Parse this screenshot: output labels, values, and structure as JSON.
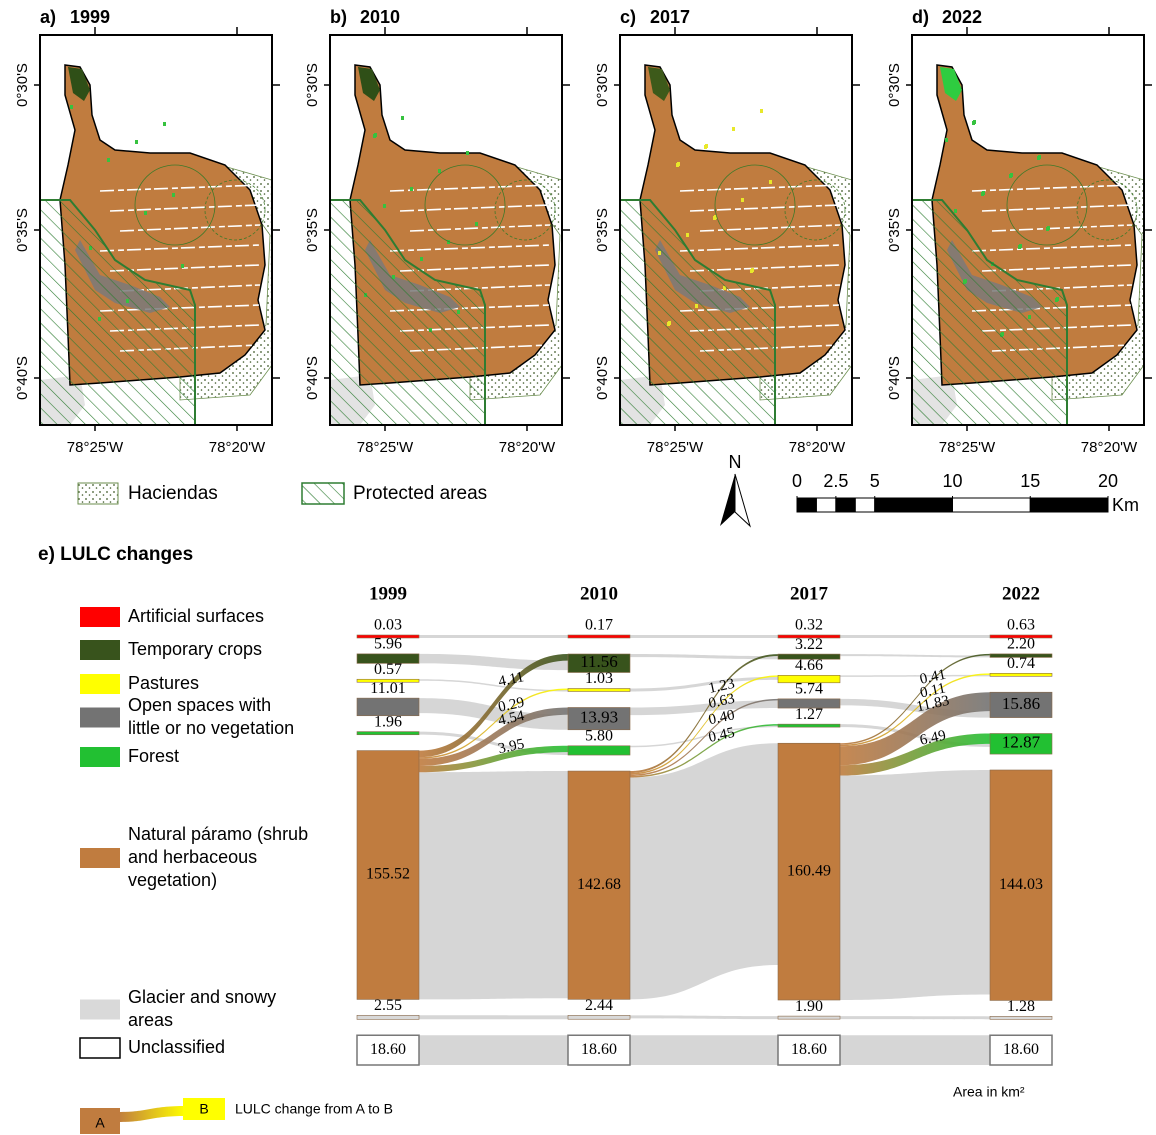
{
  "maps": [
    {
      "label": "a)",
      "year": "1999"
    },
    {
      "label": "b)",
      "year": "2010"
    },
    {
      "label": "c)",
      "year": "2017"
    },
    {
      "label": "d)",
      "year": "2022"
    }
  ],
  "map_axes": {
    "lat_labels": [
      "0°30'S",
      "0°35'S",
      "0°40'S"
    ],
    "lon_labels": [
      "78°25'W",
      "78°20'W"
    ]
  },
  "map_legend": {
    "haciendas": "Haciendas",
    "protected": "Protected areas",
    "north": "N"
  },
  "scale_bar": {
    "ticks": [
      0,
      2.5,
      5,
      10,
      15,
      20
    ],
    "unit": "Km"
  },
  "chart_data": {
    "type": "sankey",
    "title": "e) LULC changes",
    "classes": [
      {
        "legend_lines": [
          "Artificial surfaces"
        ],
        "color": "#ff0000"
      },
      {
        "legend_lines": [
          "Temporary crops"
        ],
        "color": "#38531c"
      },
      {
        "legend_lines": [
          "Pastures"
        ],
        "color": "#ffff00"
      },
      {
        "legend_lines": [
          "Open spaces with",
          "little or no vegetation"
        ],
        "color": "#737373"
      },
      {
        "legend_lines": [
          "Forest"
        ],
        "color": "#22c032"
      },
      {
        "legend_lines": [
          "Natural páramo (shrub",
          "and herbaceous",
          "vegetation)"
        ],
        "color": "#c07c3f"
      },
      {
        "legend_lines": [
          "Glacier and snowy",
          "areas"
        ],
        "color": "#d9d9d9"
      },
      {
        "legend_lines": [
          "Unclassified"
        ],
        "color": "#ffffff"
      }
    ],
    "columns": [
      {
        "year": "1999",
        "values": [
          0.03,
          5.96,
          0.57,
          11.01,
          1.96,
          155.52,
          2.55,
          18.6
        ],
        "value_labels": [
          "0.03",
          "5.96",
          "0.57",
          "11.01",
          "1.96",
          "155.52",
          "2.55",
          "18.60"
        ]
      },
      {
        "year": "2010",
        "values": [
          0.17,
          11.56,
          1.03,
          13.93,
          5.8,
          142.68,
          2.44,
          18.6
        ],
        "value_labels": [
          "0.17",
          "11.56",
          "1.03",
          "13.93",
          "5.80",
          "142.68",
          "2.44",
          "18.60"
        ]
      },
      {
        "year": "2017",
        "values": [
          0.32,
          3.22,
          4.66,
          5.74,
          1.27,
          160.49,
          1.9,
          18.6
        ],
        "value_labels": [
          "0.32",
          "3.22",
          "4.66",
          "5.74",
          "1.27",
          "160.49",
          "1.90",
          "18.60"
        ]
      },
      {
        "year": "2022",
        "values": [
          0.63,
          2.2,
          0.74,
          15.86,
          12.87,
          144.03,
          1.28,
          18.6
        ],
        "value_labels": [
          "0.63",
          "2.20",
          "0.74",
          "15.86",
          "12.87",
          "144.03",
          "1.28",
          "18.60"
        ]
      }
    ],
    "flows": [
      {
        "step": 0,
        "from": 5,
        "to": 1,
        "value": 4.11
      },
      {
        "step": 0,
        "from": 5,
        "to": 2,
        "value": 0.29
      },
      {
        "step": 0,
        "from": 5,
        "to": 3,
        "value": 4.54
      },
      {
        "step": 0,
        "from": 5,
        "to": 4,
        "value": 3.95
      },
      {
        "step": 1,
        "from": 5,
        "to": 1,
        "value": 1.23
      },
      {
        "step": 1,
        "from": 5,
        "to": 2,
        "value": 0.63
      },
      {
        "step": 1,
        "from": 5,
        "to": 3,
        "value": 0.4,
        "value_label": "0.40"
      },
      {
        "step": 1,
        "from": 5,
        "to": 4,
        "value": 0.45
      },
      {
        "step": 2,
        "from": 5,
        "to": 1,
        "value": 0.41
      },
      {
        "step": 2,
        "from": 5,
        "to": 2,
        "value": 0.11
      },
      {
        "step": 2,
        "from": 5,
        "to": 3,
        "value": 11.83
      },
      {
        "step": 2,
        "from": 5,
        "to": 4,
        "value": 6.49
      }
    ],
    "unit_note": "Area in km²",
    "change_legend": {
      "a": "A",
      "b": "B",
      "text": "LULC change from A to B"
    }
  }
}
